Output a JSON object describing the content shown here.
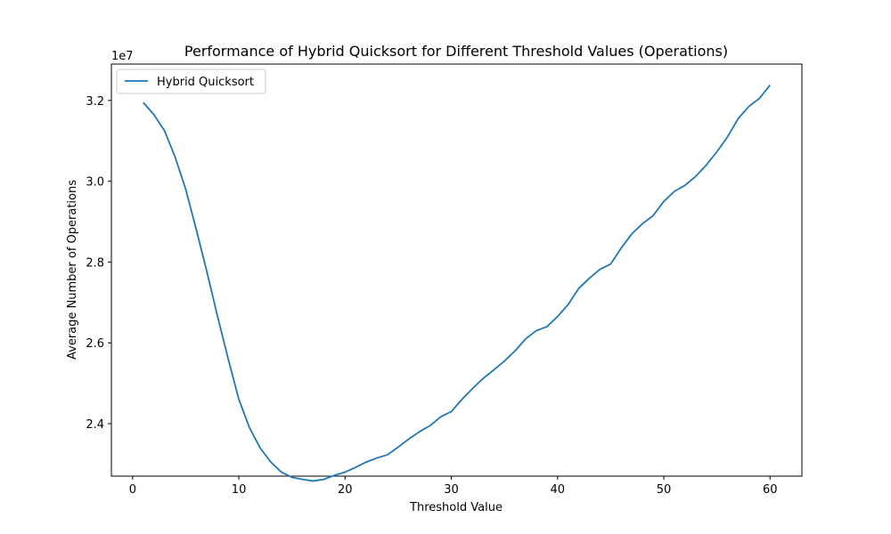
{
  "chart_data": {
    "type": "line",
    "title": "Performance of Hybrid Quicksort for Different Threshold Values (Operations)",
    "xlabel": "Threshold Value",
    "ylabel": "Average Number of Operations",
    "y_offset_label": "1e7",
    "xlim": [
      -2,
      63
    ],
    "ylim": [
      22.7,
      32.9
    ],
    "x_ticks": [
      0,
      10,
      20,
      30,
      40,
      50,
      60
    ],
    "x_tick_labels": [
      "0",
      "10",
      "20",
      "30",
      "40",
      "50",
      "60"
    ],
    "y_ticks": [
      24,
      26,
      28,
      30,
      32
    ],
    "y_tick_labels": [
      "2.4",
      "2.6",
      "2.8",
      "3.0",
      "3.2"
    ],
    "grid": false,
    "legend_position": "upper-left",
    "series": [
      {
        "name": "Hybrid Quicksort",
        "color": "#1f77b4",
        "x": [
          1,
          2,
          3,
          4,
          5,
          6,
          7,
          8,
          9,
          10,
          11,
          12,
          13,
          14,
          15,
          16,
          17,
          18,
          19,
          20,
          21,
          22,
          23,
          24,
          25,
          26,
          27,
          28,
          29,
          30,
          31,
          32,
          33,
          34,
          35,
          36,
          37,
          38,
          39,
          40,
          41,
          42,
          43,
          44,
          45,
          46,
          47,
          48,
          49,
          50,
          51,
          52,
          53,
          54,
          55,
          56,
          57,
          58,
          59,
          60
        ],
        "y": [
          31.95,
          31.65,
          31.25,
          30.6,
          29.8,
          28.8,
          27.75,
          26.65,
          25.6,
          24.6,
          23.9,
          23.4,
          23.05,
          22.8,
          22.67,
          22.62,
          22.58,
          22.62,
          22.72,
          22.8,
          22.92,
          23.05,
          23.15,
          23.23,
          23.42,
          23.62,
          23.8,
          23.95,
          24.17,
          24.3,
          24.6,
          24.87,
          25.12,
          25.33,
          25.55,
          25.8,
          26.1,
          26.3,
          26.4,
          26.65,
          26.95,
          27.35,
          27.6,
          27.82,
          27.95,
          28.35,
          28.7,
          28.95,
          29.15,
          29.5,
          29.75,
          29.9,
          30.12,
          30.4,
          30.73,
          31.1,
          31.55,
          31.85,
          32.05,
          32.38
        ]
      }
    ]
  }
}
